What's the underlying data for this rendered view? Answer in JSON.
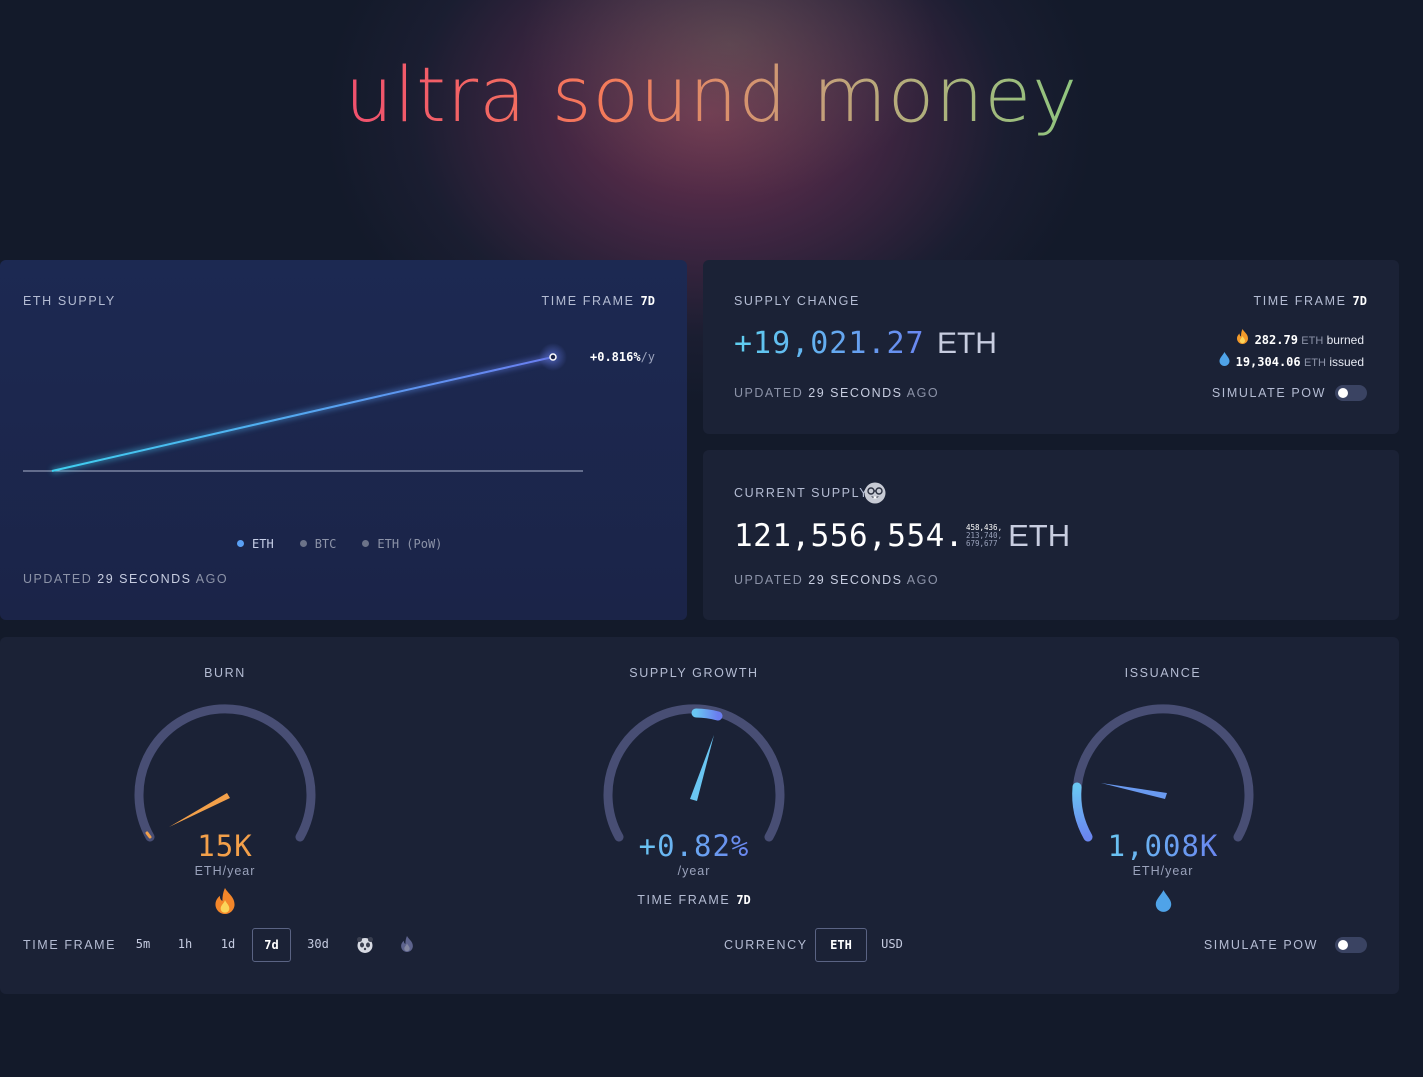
{
  "title": "ultra sound money",
  "eth_supply": {
    "label": "ETH SUPPLY",
    "timeframe_label": "TIME FRAME",
    "timeframe_value": "7d",
    "rate": "+0.816%",
    "rate_unit": "/y",
    "legend": [
      "ETH",
      "BTC",
      "ETH (PoW)"
    ],
    "updated_prefix": "UPDATED",
    "updated_value": "29 SECONDS",
    "updated_suffix": "AGO"
  },
  "supply_change": {
    "label": "SUPPLY CHANGE",
    "timeframe_label": "TIME FRAME",
    "timeframe_value": "7d",
    "value": "+19,021.27",
    "unit": "ETH",
    "burned_amount": "282.79",
    "burned_unit": "ETH",
    "burned_label": "burned",
    "issued_amount": "19,304.06",
    "issued_unit": "ETH",
    "issued_label": "issued",
    "simulate_label": "SIMULATE PoW",
    "updated_prefix": "UPDATED",
    "updated_value": "29 SECONDS",
    "updated_suffix": "AGO"
  },
  "current_supply": {
    "label": "CURRENT SUPPLY",
    "value_main": "121,556,554.",
    "value_decimals": [
      "458,436,",
      "213,740,",
      "679,677"
    ],
    "unit": "ETH",
    "updated_prefix": "UPDATED",
    "updated_value": "29 SECONDS",
    "updated_suffix": "AGO"
  },
  "gauges": {
    "burn": {
      "title": "BURN",
      "value": "15K",
      "unit": "ETH/year",
      "icon": "fire-icon",
      "color": "#f3a04a"
    },
    "supply_growth": {
      "title": "SUPPLY GROWTH",
      "value": "+0.82%",
      "unit": "/year",
      "timeframe_label": "TIME FRAME",
      "timeframe_value": "7d",
      "color": "#6ac6f2"
    },
    "issuance": {
      "title": "ISSUANCE",
      "value": "1,008K",
      "unit": "ETH/year",
      "icon": "droplet-icon",
      "color": "#6aa6ee"
    }
  },
  "footer": {
    "timeframe_label": "TIME FRAME",
    "timeframes": [
      "5m",
      "1h",
      "1d",
      "7d",
      "30d"
    ],
    "active_timeframe": "7d",
    "currency_label": "CURRENCY",
    "currencies": [
      "ETH",
      "USD"
    ],
    "active_currency": "ETH",
    "simulate_label": "SIMULATE PoW"
  }
}
